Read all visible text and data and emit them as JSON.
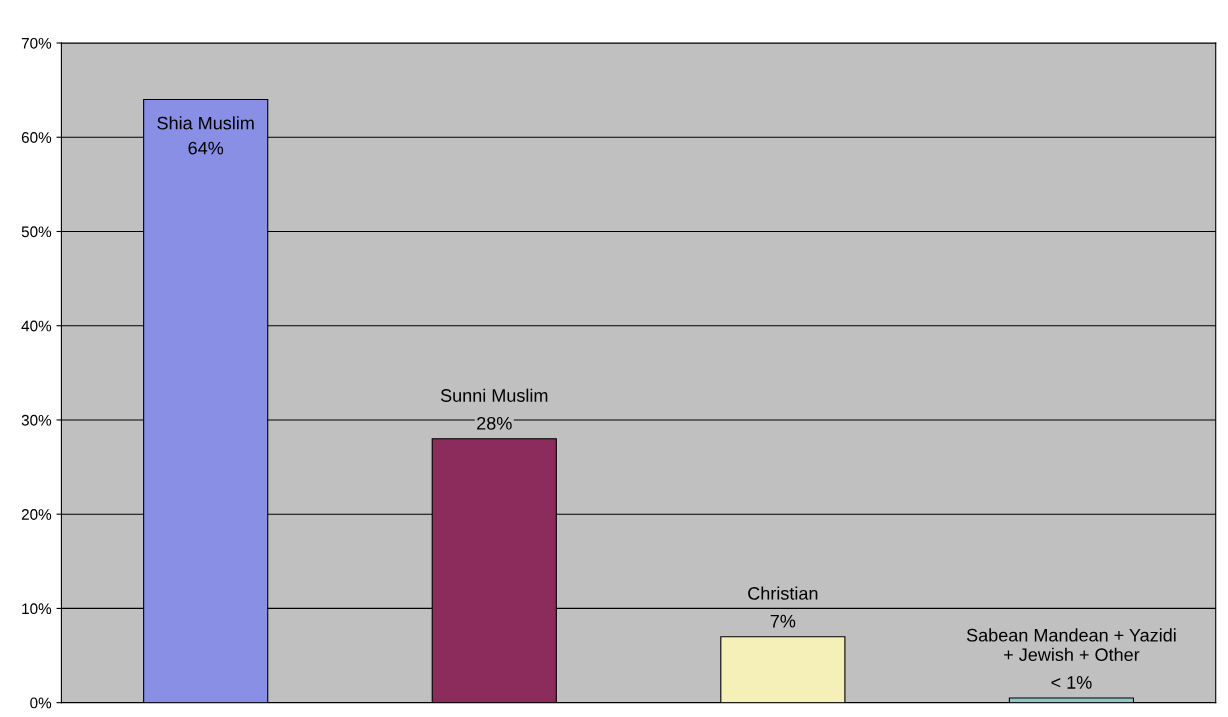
{
  "chart_data": {
    "type": "bar",
    "categories": [
      "Shia Muslim",
      "Sunni Muslim",
      "Christian",
      "Sabean Mandean + Yazidi\n+ Jewish + Other"
    ],
    "values": [
      64,
      28,
      7,
      0.5
    ],
    "value_labels": [
      "64%",
      "28%",
      "7%",
      "< 1%"
    ],
    "colors": [
      "#8a8fe6",
      "#8b2c5c",
      "#f4f0b8",
      "#93c6c6"
    ],
    "ylim": [
      0,
      70
    ],
    "yticks": [
      {
        "value": 0,
        "label": "0%"
      },
      {
        "value": 10,
        "label": "10%"
      },
      {
        "value": 20,
        "label": "20%"
      },
      {
        "value": 30,
        "label": "30%"
      },
      {
        "value": 40,
        "label": "40%"
      },
      {
        "value": 50,
        "label": "50%"
      },
      {
        "value": 60,
        "label": "60%"
      },
      {
        "value": 70,
        "label": "70%"
      }
    ],
    "grid": "y",
    "tick_labels": "y"
  }
}
